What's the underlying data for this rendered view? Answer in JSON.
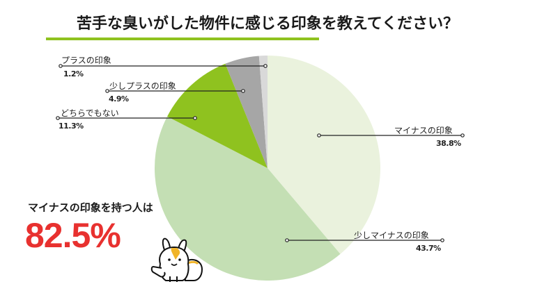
{
  "title": "苦手な臭いがした物件に感じる印象を教えてください？",
  "summary": {
    "label": "マイナスの印象を持つ人は",
    "value": "82.5%"
  },
  "labels": [
    {
      "name": "マイナスの印象",
      "pct": "38.8%"
    },
    {
      "name": "少しマイナスの印象",
      "pct": "43.7%"
    },
    {
      "name": "どちらでもない",
      "pct": "11.3%"
    },
    {
      "name": "少しプラスの印象",
      "pct": "4.9%"
    },
    {
      "name": "プラスの印象",
      "pct": "1.2%"
    }
  ],
  "colors": {
    "accent": "#8fc21f",
    "highlight": "#e8312f"
  },
  "chart_data": {
    "type": "pie",
    "title": "苦手な臭いがした物件に感じる印象を教えてください？",
    "categories": [
      "マイナスの印象",
      "少しマイナスの印象",
      "どちらでもない",
      "少しプラスの印象",
      "プラスの印象"
    ],
    "values": [
      38.8,
      43.7,
      11.3,
      4.9,
      1.2
    ],
    "colors": [
      "#eaf2dd",
      "#c4dfb4",
      "#8fc21f",
      "#a6a6a6",
      "#d9d9d9"
    ],
    "start_angle": "12 o'clock",
    "direction": "clockwise",
    "annotation": "マイナスの印象を持つ人は 82.5%",
    "legend": "none (leader-line labels)"
  }
}
